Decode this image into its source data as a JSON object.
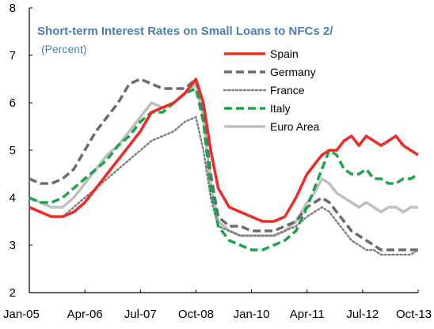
{
  "chart_data": {
    "type": "line",
    "title": "Short-term  Interest Rates on Small Loans to NFCs 2/",
    "subtitle": "(Percent)",
    "xlabel": "",
    "ylabel": "",
    "x_tick_labels": [
      "Jan-05",
      "Apr-06",
      "Jul-07",
      "Oct-08",
      "Jan-10",
      "Apr-11",
      "Jul-12",
      "Oct-13"
    ],
    "y_ticks": [
      2,
      3,
      4,
      5,
      6,
      7,
      8
    ],
    "ylim": [
      2,
      8
    ],
    "grid": false,
    "legend": "top-right",
    "x_index_info": "x values are month index from Jan-05 (0) to Oct-13 (105)",
    "series": [
      {
        "name": "Spain",
        "color": "#ee2b24",
        "dash": "solid",
        "x": [
          0,
          3,
          6,
          9,
          12,
          15,
          18,
          21,
          24,
          27,
          30,
          33,
          36,
          39,
          42,
          45,
          47,
          49,
          51,
          54,
          57,
          60,
          63,
          66,
          69,
          72,
          75,
          77,
          79,
          81,
          83,
          85,
          87,
          89,
          91,
          93,
          95,
          97,
          99,
          101,
          103,
          105
        ],
        "values": [
          3.8,
          3.7,
          3.6,
          3.6,
          3.7,
          3.9,
          4.2,
          4.5,
          4.8,
          5.1,
          5.4,
          5.8,
          5.9,
          6.0,
          6.2,
          6.5,
          6.0,
          5.0,
          4.2,
          3.8,
          3.7,
          3.6,
          3.5,
          3.5,
          3.6,
          4.0,
          4.5,
          4.7,
          4.9,
          5.0,
          5.0,
          5.2,
          5.3,
          5.1,
          5.3,
          5.2,
          5.1,
          5.2,
          5.3,
          5.1,
          5.0,
          4.9
        ]
      },
      {
        "name": "Germany",
        "color": "#6b6b6b",
        "dash": "dashed",
        "x": [
          0,
          3,
          6,
          9,
          12,
          15,
          18,
          21,
          24,
          27,
          30,
          33,
          36,
          39,
          42,
          45,
          47,
          49,
          51,
          54,
          57,
          60,
          63,
          66,
          69,
          72,
          75,
          77,
          79,
          81,
          83,
          85,
          87,
          89,
          91,
          93,
          95,
          97,
          99,
          101,
          103,
          105
        ],
        "values": [
          4.4,
          4.3,
          4.3,
          4.4,
          4.6,
          5.0,
          5.4,
          5.7,
          6.0,
          6.4,
          6.5,
          6.4,
          6.3,
          6.3,
          6.3,
          6.5,
          5.8,
          4.5,
          3.6,
          3.4,
          3.4,
          3.3,
          3.3,
          3.3,
          3.4,
          3.5,
          3.8,
          3.9,
          4.0,
          3.9,
          3.7,
          3.5,
          3.3,
          3.2,
          3.1,
          3.0,
          2.9,
          2.9,
          2.9,
          2.9,
          2.9,
          2.9
        ]
      },
      {
        "name": "France",
        "color": "#808080",
        "dash": "dotted",
        "x": [
          0,
          3,
          6,
          9,
          12,
          15,
          18,
          21,
          24,
          27,
          30,
          33,
          36,
          39,
          42,
          45,
          47,
          49,
          51,
          54,
          57,
          60,
          63,
          66,
          69,
          72,
          75,
          77,
          79,
          81,
          83,
          85,
          87,
          89,
          91,
          93,
          95,
          97,
          99,
          101,
          103,
          105
        ],
        "values": [
          3.8,
          3.7,
          3.6,
          3.6,
          3.8,
          4.0,
          4.2,
          4.4,
          4.6,
          4.8,
          5.0,
          5.2,
          5.3,
          5.4,
          5.6,
          5.7,
          5.0,
          4.0,
          3.4,
          3.3,
          3.2,
          3.2,
          3.2,
          3.2,
          3.3,
          3.4,
          3.6,
          3.7,
          3.8,
          3.7,
          3.5,
          3.3,
          3.1,
          3.0,
          2.9,
          2.9,
          2.8,
          2.8,
          2.8,
          2.8,
          2.8,
          2.9
        ]
      },
      {
        "name": "Italy",
        "color": "#1ba54b",
        "dash": "dashed",
        "x": [
          0,
          3,
          6,
          9,
          12,
          15,
          18,
          21,
          24,
          27,
          30,
          33,
          36,
          39,
          42,
          45,
          47,
          49,
          51,
          54,
          57,
          60,
          63,
          66,
          69,
          72,
          75,
          77,
          79,
          81,
          83,
          85,
          87,
          89,
          91,
          93,
          95,
          97,
          99,
          101,
          103,
          105
        ],
        "values": [
          4.0,
          3.9,
          3.9,
          4.0,
          4.2,
          4.4,
          4.6,
          4.8,
          5.1,
          5.3,
          5.6,
          5.8,
          5.8,
          6.0,
          6.2,
          6.3,
          5.6,
          4.2,
          3.4,
          3.1,
          3.0,
          2.9,
          2.9,
          3.0,
          3.1,
          3.3,
          3.8,
          4.2,
          4.6,
          5.0,
          4.9,
          4.6,
          4.5,
          4.5,
          4.6,
          4.4,
          4.4,
          4.3,
          4.3,
          4.4,
          4.4,
          4.5
        ]
      },
      {
        "name": "Euro Area",
        "color": "#bfbfbf",
        "dash": "solid",
        "x": [
          0,
          3,
          6,
          9,
          12,
          15,
          18,
          21,
          24,
          27,
          30,
          33,
          36,
          39,
          42,
          45,
          47,
          49,
          51,
          54,
          57,
          60,
          63,
          66,
          69,
          72,
          75,
          77,
          79,
          81,
          83,
          85,
          87,
          89,
          91,
          93,
          95,
          97,
          99,
          101,
          103,
          105
        ],
        "values": [
          4.0,
          3.9,
          3.8,
          3.8,
          4.0,
          4.3,
          4.6,
          4.9,
          5.1,
          5.4,
          5.7,
          6.0,
          5.9,
          6.0,
          6.2,
          6.4,
          5.7,
          4.3,
          3.5,
          3.3,
          3.2,
          3.2,
          3.2,
          3.2,
          3.3,
          3.5,
          3.9,
          4.1,
          4.4,
          4.3,
          4.1,
          4.0,
          3.9,
          3.8,
          3.9,
          3.8,
          3.7,
          3.8,
          3.8,
          3.7,
          3.8,
          3.8
        ]
      }
    ]
  }
}
